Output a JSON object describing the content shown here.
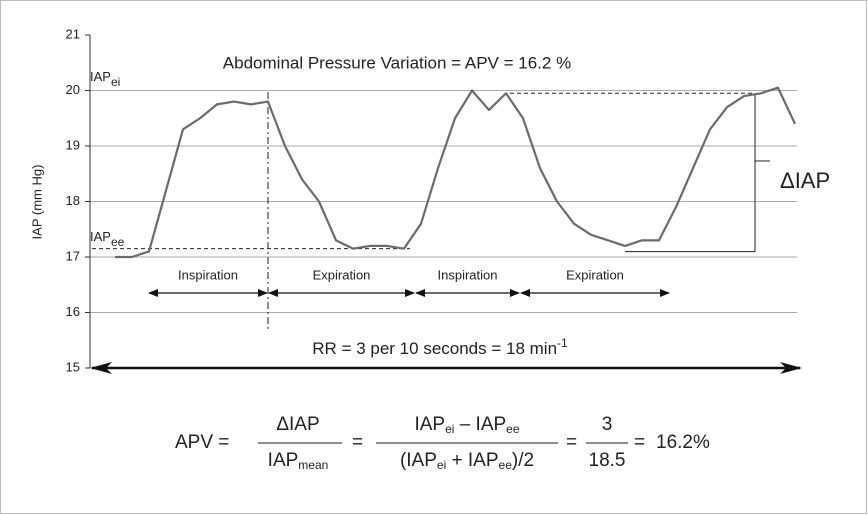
{
  "chart_data": {
    "type": "line",
    "y_label": "IAP (mm Hg)",
    "ylim": [
      15,
      21
    ],
    "yticks": [
      15,
      16,
      17,
      18,
      19,
      20,
      21
    ],
    "grid": true,
    "color": "#6b6b6b",
    "categories": [
      null,
      null,
      null,
      null,
      null,
      null,
      null,
      null,
      null,
      null,
      null,
      null,
      null,
      null,
      null,
      null,
      null,
      null,
      null,
      null,
      null,
      null,
      null,
      null,
      null,
      null,
      null,
      null,
      null,
      null,
      null,
      null,
      null,
      null,
      null,
      null,
      null,
      null,
      null,
      null,
      null
    ],
    "values": [
      17.0,
      17.0,
      17.1,
      18.2,
      19.3,
      19.5,
      19.75,
      19.8,
      19.75,
      19.8,
      19.0,
      18.4,
      18.0,
      17.3,
      17.15,
      17.2,
      17.2,
      17.15,
      17.6,
      18.6,
      19.5,
      20.0,
      19.65,
      19.95,
      19.5,
      18.6,
      18.0,
      17.6,
      17.4,
      17.3,
      17.2,
      17.3,
      17.3,
      17.9,
      18.6,
      19.3,
      19.7,
      19.9,
      19.95,
      20.05,
      19.4
    ],
    "annotations": {
      "headline": "Abdominal Pressure Variation = APV = 16.2 %",
      "iap_ei": {
        "text": "IAP",
        "sub": "ei",
        "value": 19.95
      },
      "iap_ee": {
        "text": "IAP",
        "sub": "ee",
        "value": 17.15
      },
      "delta": "ΔIAP",
      "phases": [
        "Inspiration",
        "Expiration",
        "Inspiration",
        "Expiration"
      ],
      "rr": {
        "text": "RR = 3 per 10 seconds = 18 min",
        "sup": "-1"
      }
    },
    "formula": {
      "lhs": "APV =",
      "eq": "=",
      "frac1": {
        "num": "ΔIAP",
        "den": "IAP",
        "den_sub": "mean"
      },
      "frac2": {
        "num": [
          "IAP",
          "ei",
          " – IAP",
          "ee"
        ],
        "den": [
          "(IAP",
          "ei",
          " + IAP",
          "ee",
          ")/2"
        ]
      },
      "frac3": {
        "num": "3",
        "den": "18.5"
      },
      "result": "16.2%"
    }
  }
}
